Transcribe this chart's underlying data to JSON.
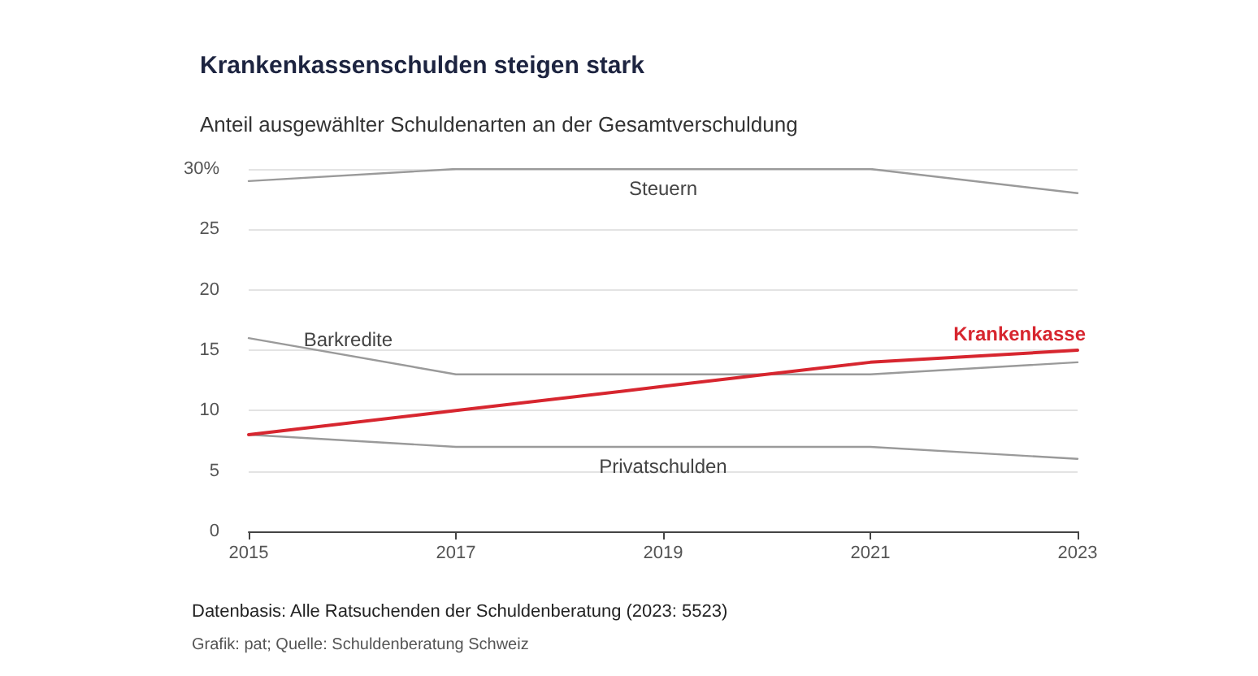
{
  "chart_data": {
    "type": "line",
    "title": "Krankenkassenschulden steigen stark",
    "subtitle": "Anteil ausgewählter Schuldenarten an der Gesamtverschuldung",
    "xlim": [
      2015,
      2023
    ],
    "xticks": [
      2015,
      2017,
      2019,
      2021,
      2023
    ],
    "ylim": [
      0,
      30
    ],
    "yticks": [
      0,
      5,
      10,
      15,
      20,
      25,
      {
        "value": 30,
        "label": "30%"
      }
    ],
    "grid": "y",
    "legend": false,
    "marker": "none",
    "line_style": "solid",
    "series": [
      {
        "name": "Steuern",
        "color": "#9a9a9a",
        "x": [
          2015,
          2017,
          2021,
          2023
        ],
        "values": [
          29,
          30,
          30,
          28
        ]
      },
      {
        "name": "Barkredite",
        "color": "#9a9a9a",
        "x": [
          2015,
          2017,
          2021,
          2023
        ],
        "values": [
          16,
          13,
          13,
          14
        ]
      },
      {
        "name": "Privatschulden",
        "color": "#9a9a9a",
        "x": [
          2015,
          2017,
          2021,
          2023
        ],
        "values": [
          8,
          7,
          7,
          6
        ]
      },
      {
        "name": "Krankenkasse",
        "color": "#d7262f",
        "x": [
          2015,
          2017,
          2019,
          2021,
          2023
        ],
        "values": [
          8,
          10,
          12,
          14,
          15
        ]
      }
    ],
    "annotations": [
      "Datenbasis: Alle Ratsuchenden der Schuldenberatung (2023: 5523)",
      "Grafik: pat; Quelle: Schuldenberatung Schweiz"
    ]
  }
}
